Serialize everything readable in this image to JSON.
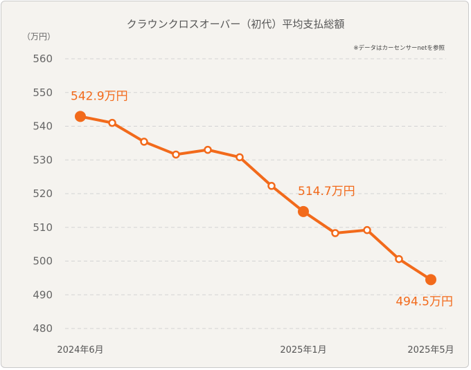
{
  "chart_data": {
    "type": "line",
    "title": "クラウンクロスオーバー（初代）平均支払総額",
    "unit_label": "（万円）",
    "source_note": "※データはカーセンサーnetを参照",
    "ylim": [
      480,
      560
    ],
    "y_ticks": [
      480,
      490,
      500,
      510,
      520,
      530,
      540,
      550,
      560
    ],
    "grid": true,
    "color": "#f26a1b",
    "x_tick_labels": [
      {
        "index": 0,
        "label": "2024年6月"
      },
      {
        "index": 7,
        "label": "2025年1月"
      },
      {
        "index": 11,
        "label": "2025年5月"
      }
    ],
    "series": [
      {
        "values": [
          542.9,
          541.0,
          535.4,
          531.6,
          533.0,
          530.8,
          522.3,
          514.7,
          508.3,
          509.2,
          500.6,
          494.5
        ]
      }
    ],
    "highlights": [
      {
        "index": 0,
        "label": "542.9万円"
      },
      {
        "index": 7,
        "label": "514.7万円"
      },
      {
        "index": 11,
        "label": "494.5万円"
      }
    ]
  }
}
